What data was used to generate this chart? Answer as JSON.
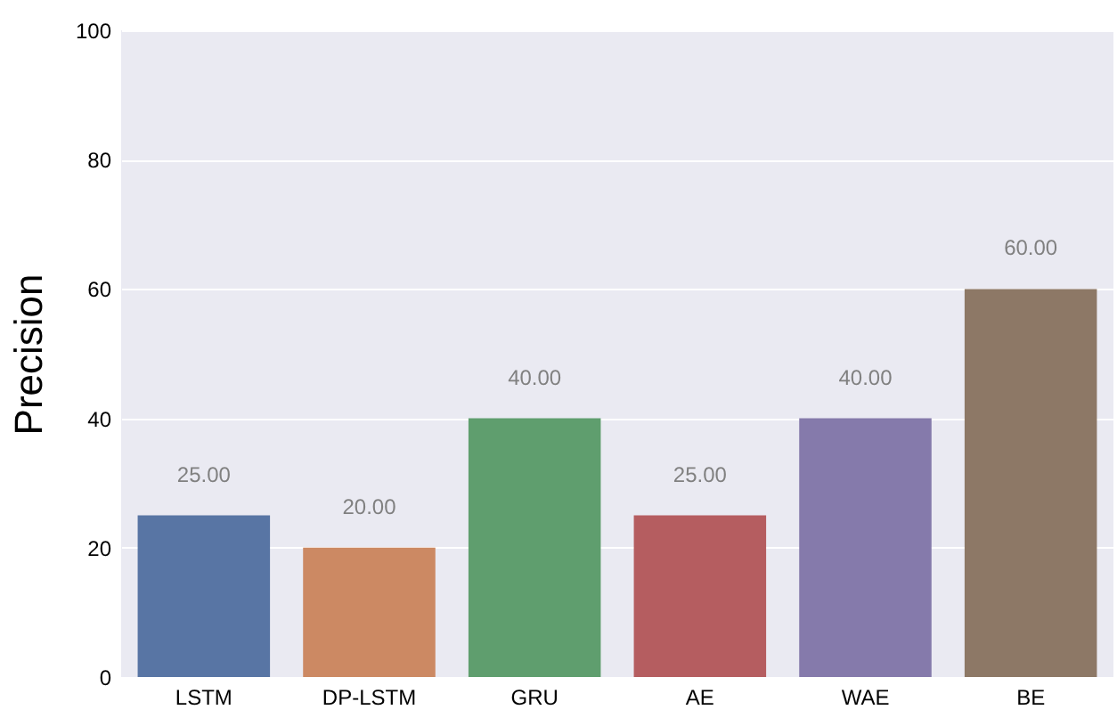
{
  "chart_data": {
    "type": "bar",
    "ylabel": "Precision",
    "categories": [
      "LSTM",
      "DP-LSTM",
      "GRU",
      "AE",
      "WAE",
      "BE"
    ],
    "values": [
      25,
      20,
      40,
      25,
      40,
      60
    ],
    "colors": [
      "#5875a4",
      "#cc8963",
      "#5f9e6e",
      "#b55d60",
      "#857aab",
      "#8d7866"
    ],
    "value_labels": [
      "25.00",
      "20.00",
      "40.00",
      "25.00",
      "40.00",
      "60.00"
    ],
    "ylim": [
      0,
      100
    ],
    "yticks": [
      0,
      20,
      40,
      60,
      80,
      100
    ],
    "grid": "y"
  }
}
